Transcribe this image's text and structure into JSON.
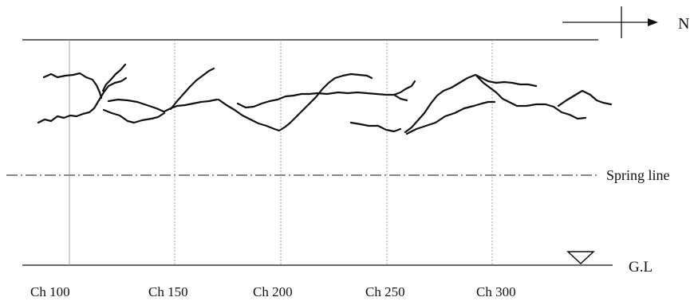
{
  "north_label": "N",
  "spring_line_label": "Spring line",
  "ground_level_label": "G.L",
  "chainages": [
    {
      "label": "Ch 100"
    },
    {
      "label": "Ch 150"
    },
    {
      "label": "Ch 200"
    },
    {
      "label": "Ch 250"
    },
    {
      "label": "Ch 300"
    }
  ],
  "colors": {
    "ink": "#111111",
    "grid": "#9a9a9a"
  }
}
